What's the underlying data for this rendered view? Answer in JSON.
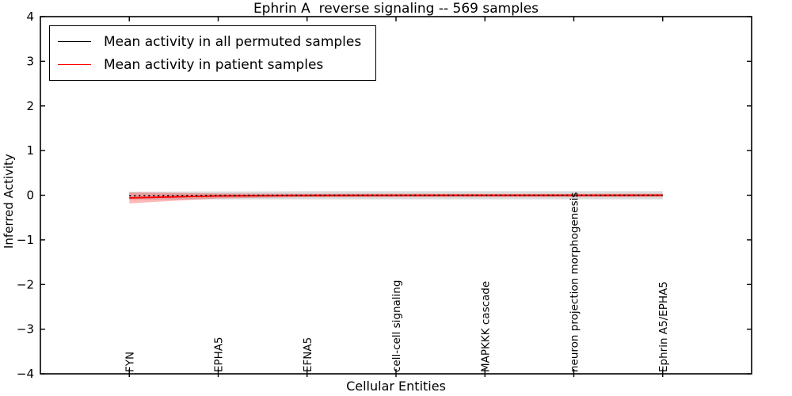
{
  "title": "Ephrin A  reverse signaling -- 569 samples",
  "axes": {
    "xlabel": "Cellular Entities",
    "ylabel": "Inferred Activity"
  },
  "legend": {
    "items": [
      {
        "label": "Mean activity in all permuted samples",
        "color": "#000000"
      },
      {
        "label": "Mean activity in patient samples",
        "color": "#ff0000"
      }
    ]
  },
  "colors": {
    "permuted_line": "#000000",
    "patient_line": "#ff0000",
    "patient_band": "#ff0000",
    "permuted_band": "#999999",
    "axis": "#000000"
  },
  "chart_data": {
    "type": "line",
    "title": "Ephrin A  reverse signaling -- 569 samples",
    "xlabel": "Cellular Entities",
    "ylabel": "Inferred Activity",
    "categories": [
      "FYN",
      "EPHA5",
      "EFNA5",
      "cell-cell signaling",
      "MAPKKK cascade",
      "neuron projection morphogenesis",
      "Ephrin A5/EPHA5"
    ],
    "x_positions": [
      1,
      2,
      3,
      4,
      5,
      6,
      7
    ],
    "xlim": [
      0,
      8
    ],
    "ylim": [
      -4,
      4
    ],
    "yticks": [
      4,
      3,
      2,
      1,
      0,
      -1,
      -2,
      -3,
      -4
    ],
    "ytick_labels": [
      "4",
      "3",
      "2",
      "1",
      "0",
      "−1",
      "−2",
      "−3",
      "−4"
    ],
    "grid": false,
    "legend_position": "upper left",
    "series": [
      {
        "name": "Mean activity in patient samples",
        "color": "#ff0000",
        "style": "solid",
        "width": 2,
        "values": [
          -0.06,
          -0.015,
          -0.005,
          -0.003,
          -0.002,
          -0.002,
          -0.001
        ]
      },
      {
        "name": "Mean activity in all permuted samples",
        "color": "#000000",
        "style": "dotted",
        "width": 1.6,
        "values": [
          -0.01,
          -0.003,
          0,
          0,
          0,
          0,
          0
        ]
      }
    ],
    "bands": [
      {
        "name": "permuted-std-band",
        "color": "#999999",
        "opacity": 0.35,
        "upper": [
          0.08,
          0.085,
          0.09,
          0.09,
          0.09,
          0.09,
          0.09
        ],
        "lower": [
          -0.1,
          -0.095,
          -0.09,
          -0.09,
          -0.09,
          -0.09,
          -0.09
        ]
      },
      {
        "name": "patient-std-band",
        "color": "#ff0000",
        "opacity": 0.28,
        "upper": [
          0.062,
          0.04,
          0.034,
          0.033,
          0.032,
          0.032,
          0.033
        ],
        "lower": [
          -0.182,
          -0.07,
          -0.044,
          -0.039,
          -0.036,
          -0.036,
          -0.035
        ]
      }
    ]
  }
}
